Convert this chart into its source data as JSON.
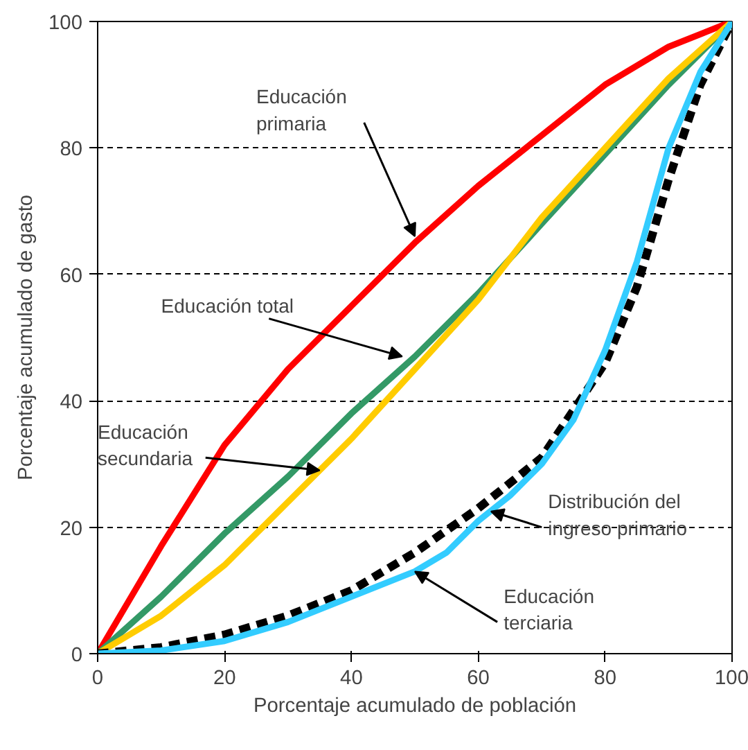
{
  "chart_data": {
    "type": "line",
    "xlabel": "Porcentaje acumulado de población",
    "ylabel": "Porcentaje acumulado de gasto",
    "xlim": [
      0,
      100
    ],
    "ylim": [
      0,
      100
    ],
    "xticks": [
      0,
      20,
      40,
      60,
      80,
      100
    ],
    "yticks": [
      0,
      20,
      40,
      60,
      80,
      100
    ],
    "grid": "y",
    "marker": "none",
    "annotations": [
      {
        "text": "Educación\nprimaria",
        "x": 50,
        "y": 66
      },
      {
        "text": "Educación total",
        "x": 48,
        "y": 47
      },
      {
        "text": "Educación\nsecundaria",
        "x": 35,
        "y": 29
      },
      {
        "text": "Distribución del\ningreso primario",
        "x": 62,
        "y": 22.5
      },
      {
        "text": "Educación\nterciaria",
        "x": 50,
        "y": 13
      }
    ],
    "series": [
      {
        "color": "#ff0000",
        "x": [
          0,
          10,
          20,
          30,
          40,
          50,
          60,
          70,
          80,
          90,
          100
        ],
        "values": [
          0,
          17,
          33,
          45,
          55,
          65,
          74,
          82,
          90,
          96,
          100
        ]
      },
      {
        "color": "#339966",
        "x": [
          0,
          10,
          20,
          30,
          40,
          50,
          60,
          70,
          80,
          90,
          100
        ],
        "values": [
          0,
          9,
          19,
          28,
          38,
          47,
          57,
          68,
          79,
          90,
          100
        ]
      },
      {
        "color": "#ffcc00",
        "x": [
          0,
          10,
          20,
          30,
          40,
          50,
          60,
          70,
          80,
          90,
          100
        ],
        "values": [
          0,
          6,
          14,
          24,
          34,
          45,
          56,
          69,
          80,
          91,
          100
        ]
      },
      {
        "color": "#000000",
        "line_style": "dashed",
        "x": [
          0,
          10,
          20,
          30,
          40,
          50,
          60,
          70,
          80,
          85,
          90,
          95,
          100
        ],
        "values": [
          0,
          1,
          3,
          6,
          10,
          16,
          23,
          31,
          46,
          58,
          75,
          90,
          100
        ]
      },
      {
        "color": "#33ccff",
        "x": [
          0,
          10,
          20,
          30,
          40,
          50,
          55,
          60,
          65,
          70,
          75,
          80,
          85,
          90,
          95,
          100
        ],
        "values": [
          0,
          0.5,
          2,
          5,
          9,
          13,
          16,
          21,
          25,
          30,
          37,
          48,
          62,
          80,
          92,
          100
        ]
      }
    ]
  }
}
